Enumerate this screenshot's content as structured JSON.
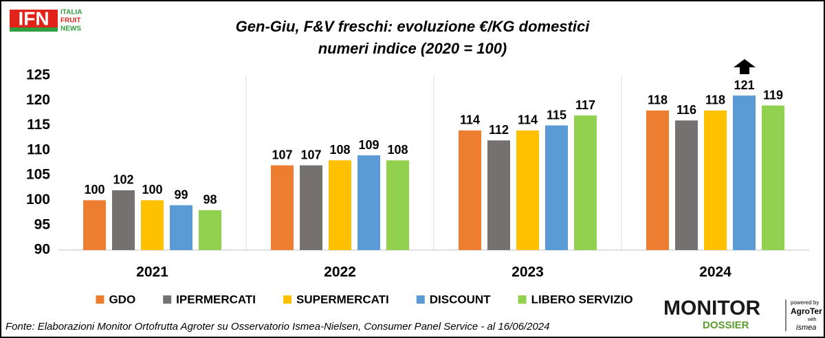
{
  "chart_data": {
    "type": "bar",
    "title": "Gen-Giu, F&V freschi: evoluzione €/KG domestici",
    "subtitle": "numeri indice (2020 = 100)",
    "categories": [
      "2021",
      "2022",
      "2023",
      "2024"
    ],
    "series": [
      {
        "name": "GDO",
        "color": "#ed7d31",
        "values": [
          100,
          107,
          114,
          118
        ]
      },
      {
        "name": "IPERMERCATI",
        "color": "#767171",
        "values": [
          102,
          107,
          112,
          116
        ]
      },
      {
        "name": "SUPERMERCATI",
        "color": "#ffc000",
        "values": [
          100,
          108,
          114,
          118
        ]
      },
      {
        "name": "DISCOUNT",
        "color": "#5b9bd5",
        "values": [
          99,
          109,
          115,
          121
        ]
      },
      {
        "name": "LIBERO SERVIZIO",
        "color": "#92d050",
        "values": [
          98,
          108,
          117,
          119
        ]
      }
    ],
    "ylim": [
      90,
      125
    ],
    "yticks": [
      90,
      95,
      100,
      105,
      110,
      115,
      120,
      125
    ],
    "source": "Fonte: Elaborazioni Monitor Ortofrutta Agroter su Osservatorio Ismea-Nielsen, Consumer Panel Service - al 16/06/2024"
  },
  "logos": {
    "ifn": "IFN",
    "ifn_lines": [
      "ITALIA",
      "FRUIT",
      "NEWS"
    ],
    "monitor": "MONITOR",
    "dossier": "DOSSIER",
    "powered": "powered by",
    "agroter": "AgroTer",
    "with": "with",
    "ismea": "ismea"
  }
}
